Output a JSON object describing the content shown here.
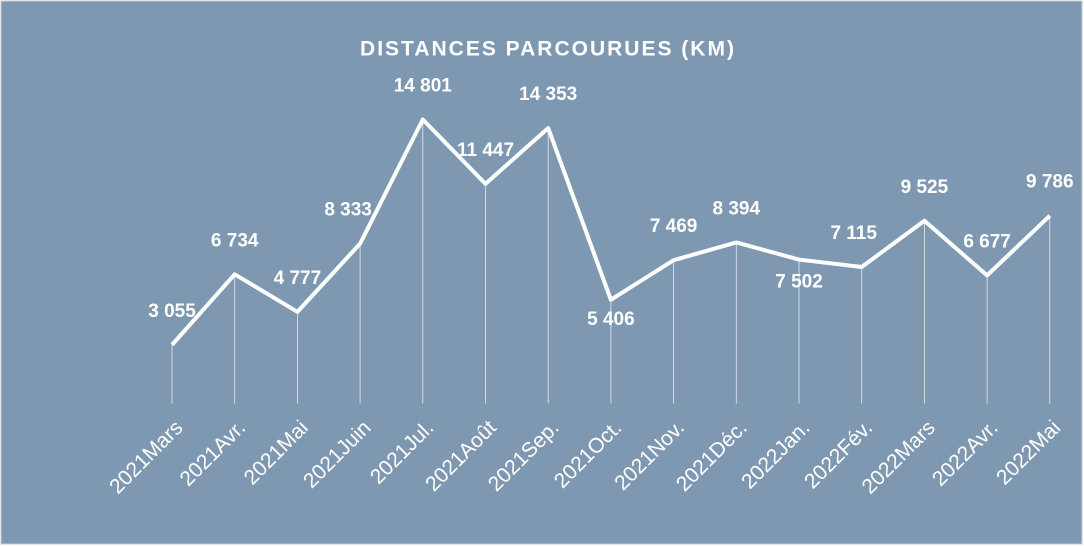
{
  "chart_data": {
    "type": "line",
    "title": "DISTANCES PARCOURUES (KM)",
    "categories": [
      "2021Mars",
      "2021Avr.",
      "2021Mai",
      "2021Juin",
      "2021Jul.",
      "2021Août",
      "2021Sep.",
      "2021Oct.",
      "2021Nov.",
      "2021Déc.",
      "2022Jan.",
      "2022Fév.",
      "2022Mars",
      "2022Avr.",
      "2022Mai"
    ],
    "series": [
      {
        "name": "Distances",
        "color": "#ffffff",
        "values": [
          3055,
          6734,
          4777,
          8333,
          14801,
          11447,
          14353,
          5406,
          7469,
          8394,
          7502,
          7115,
          9525,
          6677,
          9786
        ],
        "value_labels": [
          "3 055",
          "6 734",
          "4 777",
          "8 333",
          "14 801",
          "11 447",
          "14 353",
          "5 406",
          "7 469",
          "8 394",
          "7 502",
          "7 115",
          "9 525",
          "6 677",
          "9 786"
        ]
      }
    ],
    "ylim": [
      0,
      16000
    ],
    "drop_lines": true,
    "background": "#7f98b2"
  }
}
